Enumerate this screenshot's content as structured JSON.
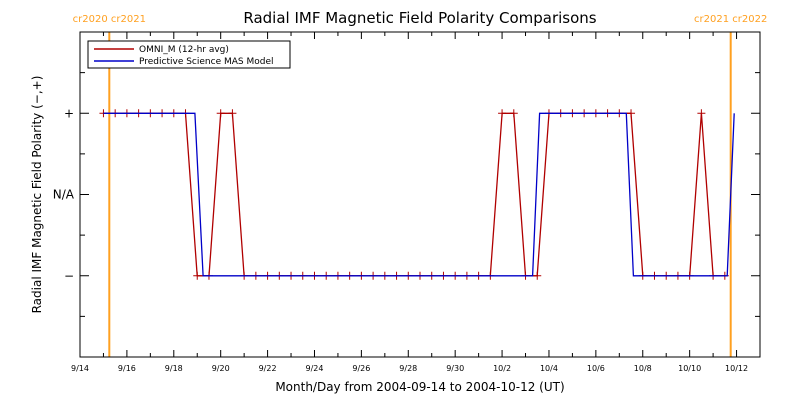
{
  "chart_data": {
    "type": "line",
    "title": "Radial IMF Magnetic Field Polarity Comparisons",
    "xlabel": "Month/Day from 2004-09-14 to 2004-10-12 (UT)",
    "ylabel": "Radial IMF Magnetic Field Polarity (−,+)",
    "x_unit": "day of 2004-09-14 .. 2004-10-12",
    "xlim": [
      0,
      29
    ],
    "ylim": [
      -2,
      2
    ],
    "x_ticks": [
      {
        "x": 0,
        "label": "9/14"
      },
      {
        "x": 2,
        "label": "9/16"
      },
      {
        "x": 4,
        "label": "9/18"
      },
      {
        "x": 6,
        "label": "9/20"
      },
      {
        "x": 8,
        "label": "9/22"
      },
      {
        "x": 10,
        "label": "9/24"
      },
      {
        "x": 12,
        "label": "9/26"
      },
      {
        "x": 14,
        "label": "9/28"
      },
      {
        "x": 16,
        "label": "9/30"
      },
      {
        "x": 18,
        "label": "10/2"
      },
      {
        "x": 20,
        "label": "10/4"
      },
      {
        "x": 22,
        "label": "10/6"
      },
      {
        "x": 24,
        "label": "10/8"
      },
      {
        "x": 26,
        "label": "10/10"
      },
      {
        "x": 28,
        "label": "10/12"
      }
    ],
    "y_ticks": [
      {
        "y": 1,
        "label": "+"
      },
      {
        "y": 0,
        "label": "N/A"
      },
      {
        "y": -1,
        "label": "−"
      }
    ],
    "legend": {
      "placement": "top-left"
    },
    "series": [
      {
        "name": "OMNI_M (12-hr avg)",
        "color": "#b00000",
        "markers": "plus",
        "x": [
          1.0,
          1.5,
          2.0,
          2.5,
          3.0,
          3.5,
          4.0,
          4.5,
          5.0,
          5.5,
          6.0,
          6.5,
          7.0,
          7.5,
          8.0,
          8.5,
          9.0,
          9.5,
          10.0,
          10.5,
          11.0,
          11.5,
          12.0,
          12.5,
          13.0,
          13.5,
          14.0,
          14.5,
          15.0,
          15.5,
          16.0,
          16.5,
          17.0,
          17.5,
          18.0,
          18.5,
          19.0,
          19.5,
          20.0,
          20.5,
          21.0,
          21.5,
          22.0,
          22.5,
          23.0,
          23.5,
          24.0,
          24.5,
          25.0,
          25.5,
          26.0,
          26.5,
          27.0,
          27.5
        ],
        "y": [
          1,
          1,
          1,
          1,
          1,
          1,
          1,
          1,
          -1,
          -1,
          1,
          1,
          -1,
          -1,
          -1,
          -1,
          -1,
          -1,
          -1,
          -1,
          -1,
          -1,
          -1,
          -1,
          -1,
          -1,
          -1,
          -1,
          -1,
          -1,
          -1,
          -1,
          -1,
          -1,
          1,
          1,
          -1,
          -1,
          1,
          1,
          1,
          1,
          1,
          1,
          1,
          1,
          -1,
          -1,
          -1,
          -1,
          -1,
          1,
          -1,
          -1
        ]
      },
      {
        "name": "Predictive Science MAS Model",
        "color": "#0000c8",
        "markers": "none",
        "x": [
          1.0,
          4.9,
          5.25,
          19.3,
          19.6,
          23.3,
          23.6,
          27.6,
          27.9
        ],
        "y": [
          1,
          1,
          -1,
          -1,
          1,
          1,
          -1,
          -1,
          1
        ]
      }
    ],
    "carrington_rotations": [
      {
        "x": 1.25,
        "labels": [
          "cr2020",
          "cr2021"
        ],
        "color": "#ffa020"
      },
      {
        "x": 27.75,
        "labels": [
          "cr2021",
          "cr2022"
        ],
        "color": "#ffa020"
      }
    ]
  }
}
